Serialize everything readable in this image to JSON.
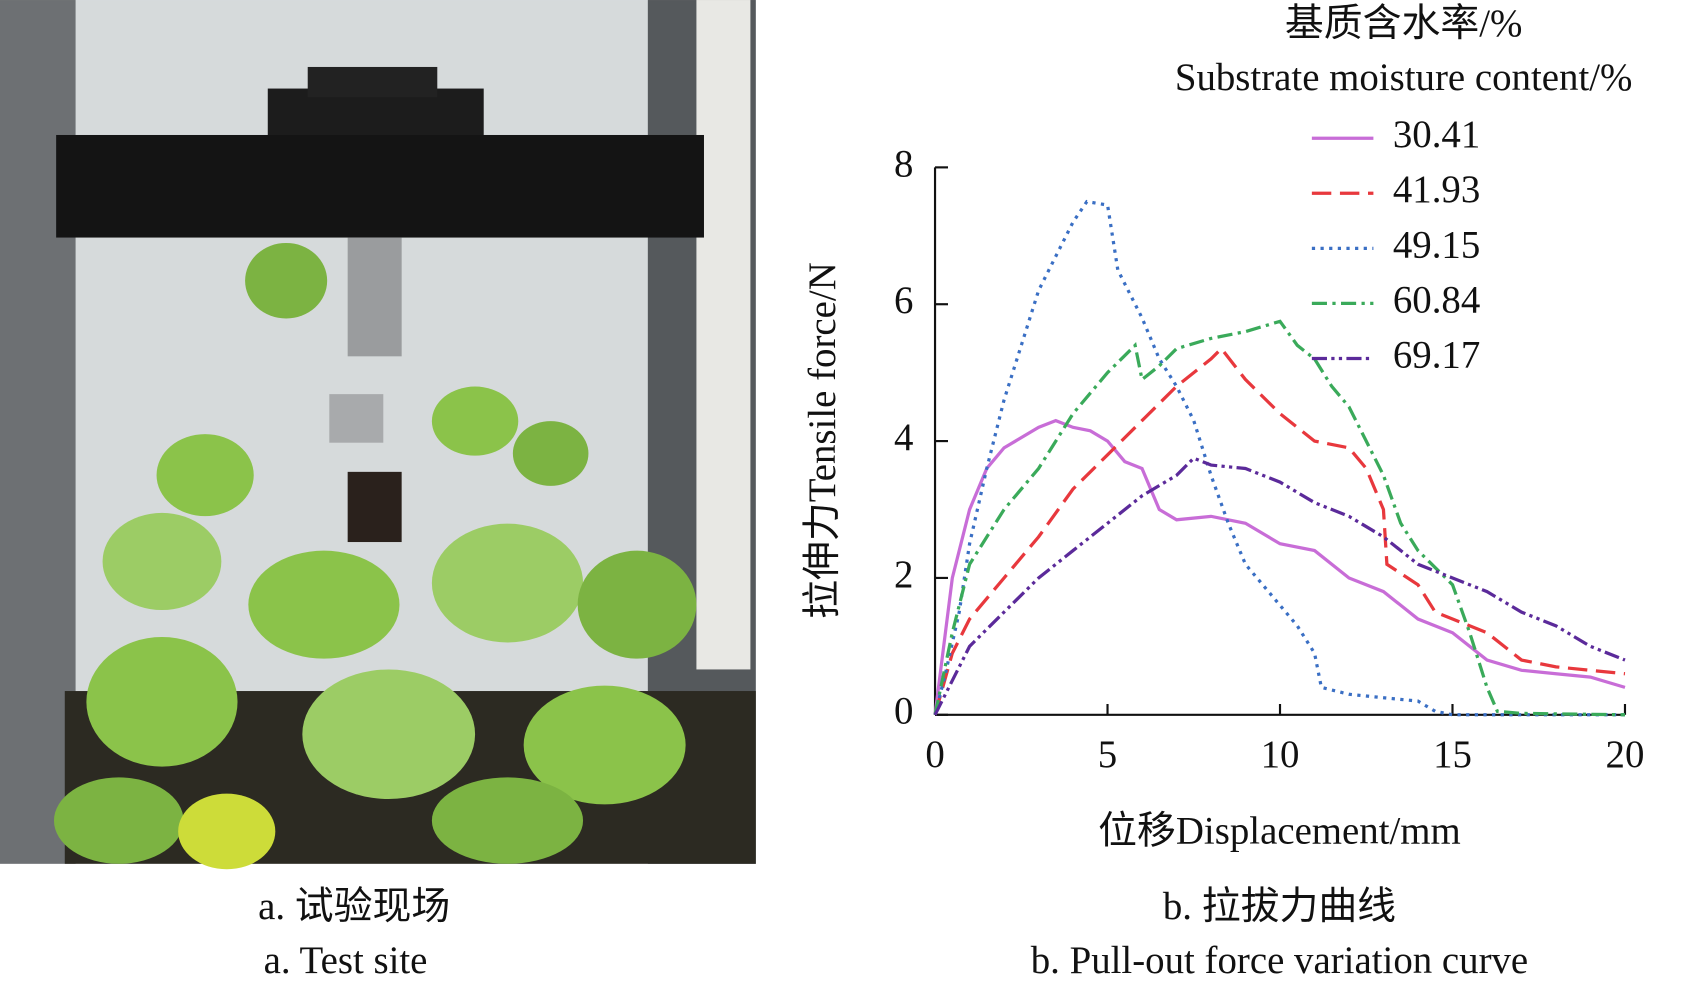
{
  "panel_a": {
    "caption_cn": "a. 试验现场",
    "caption_en": "a. Test site"
  },
  "panel_b": {
    "caption_cn": "b. 拉拔力曲线",
    "caption_en": "b. Pull-out force variation curve"
  },
  "chart_data": {
    "type": "line",
    "xlabel": "位移Displacement/mm",
    "ylabel": "拉伸力Tensile force/N",
    "legend_title": [
      "基质含水率/%",
      "Substrate moisture content/%"
    ],
    "legend": "upper right",
    "xlim": [
      0,
      20
    ],
    "xticks": [
      0,
      5,
      10,
      15,
      20
    ],
    "ylim": [
      0,
      8
    ],
    "yticks": [
      0,
      2,
      4,
      6,
      8
    ],
    "series": [
      {
        "name": "30.41",
        "color": "#c86dd7",
        "dash": "solid",
        "x": [
          0,
          0.5,
          1,
          1.5,
          2,
          3,
          3.5,
          4,
          4.5,
          5,
          5.5,
          6,
          6.5,
          7,
          8,
          9,
          10,
          11,
          12,
          13,
          14,
          15,
          16,
          17,
          18,
          19,
          20
        ],
        "values": [
          0,
          2.0,
          3.0,
          3.6,
          3.9,
          4.2,
          4.3,
          4.2,
          4.15,
          4.0,
          3.7,
          3.6,
          3.0,
          2.85,
          2.9,
          2.8,
          2.5,
          2.4,
          2.0,
          1.8,
          1.4,
          1.2,
          0.8,
          0.65,
          0.6,
          0.55,
          0.4
        ]
      },
      {
        "name": "41.93",
        "color": "#e8383d",
        "dash": "dashed",
        "x": [
          0,
          0.5,
          1,
          2,
          3,
          4,
          5,
          6,
          7,
          8,
          8.3,
          9,
          10,
          11,
          12,
          12.5,
          13,
          13.1,
          14,
          14.5,
          15,
          16,
          17,
          18,
          19,
          20
        ],
        "values": [
          0,
          0.9,
          1.4,
          2.0,
          2.6,
          3.3,
          3.8,
          4.3,
          4.8,
          5.2,
          5.35,
          4.9,
          4.4,
          4.0,
          3.9,
          3.6,
          3.0,
          2.2,
          1.9,
          1.5,
          1.4,
          1.2,
          0.8,
          0.7,
          0.65,
          0.6
        ]
      },
      {
        "name": "49.15",
        "color": "#3a6fc4",
        "dash": "dotted",
        "x": [
          0,
          0.3,
          0.7,
          1,
          1.5,
          2,
          2.5,
          3,
          3.5,
          4,
          4.4,
          5,
          5.3,
          6,
          6.5,
          7,
          7.5,
          8,
          8.5,
          9,
          10,
          10.5,
          11,
          11.2,
          12,
          13,
          14,
          14.5,
          15,
          20
        ],
        "values": [
          0,
          0.6,
          1.5,
          2.5,
          3.6,
          4.6,
          5.4,
          6.2,
          6.7,
          7.2,
          7.5,
          7.45,
          6.5,
          5.8,
          5.2,
          4.8,
          4.3,
          3.5,
          2.8,
          2.2,
          1.6,
          1.3,
          0.9,
          0.4,
          0.3,
          0.25,
          0.2,
          0.05,
          0,
          0
        ]
      },
      {
        "name": "60.84",
        "color": "#3aaa5a",
        "dash": "dashdot",
        "x": [
          0,
          0.5,
          1,
          2,
          3,
          4,
          5,
          5.8,
          6,
          6.5,
          7,
          8,
          9,
          10,
          10.5,
          11,
          11.5,
          12,
          13,
          13.5,
          14,
          15,
          15.5,
          16,
          16.3,
          17,
          20
        ],
        "values": [
          0,
          1.2,
          2.2,
          3.0,
          3.6,
          4.4,
          5.0,
          5.4,
          4.9,
          5.1,
          5.35,
          5.5,
          5.6,
          5.75,
          5.4,
          5.2,
          4.8,
          4.5,
          3.5,
          2.8,
          2.4,
          1.9,
          1.2,
          0.4,
          0.05,
          0.02,
          0
        ]
      },
      {
        "name": "69.17",
        "color": "#5b2a9a",
        "dash": "dashdotdot",
        "x": [
          0,
          1,
          2,
          3,
          4,
          5,
          6,
          7,
          7.5,
          8,
          9,
          10,
          11,
          12,
          13,
          14,
          15,
          16,
          17,
          18,
          19,
          20
        ],
        "values": [
          0,
          1.0,
          1.5,
          2.0,
          2.4,
          2.8,
          3.2,
          3.5,
          3.75,
          3.65,
          3.6,
          3.4,
          3.1,
          2.9,
          2.6,
          2.2,
          2.0,
          1.8,
          1.5,
          1.3,
          1.0,
          0.8
        ]
      }
    ]
  }
}
